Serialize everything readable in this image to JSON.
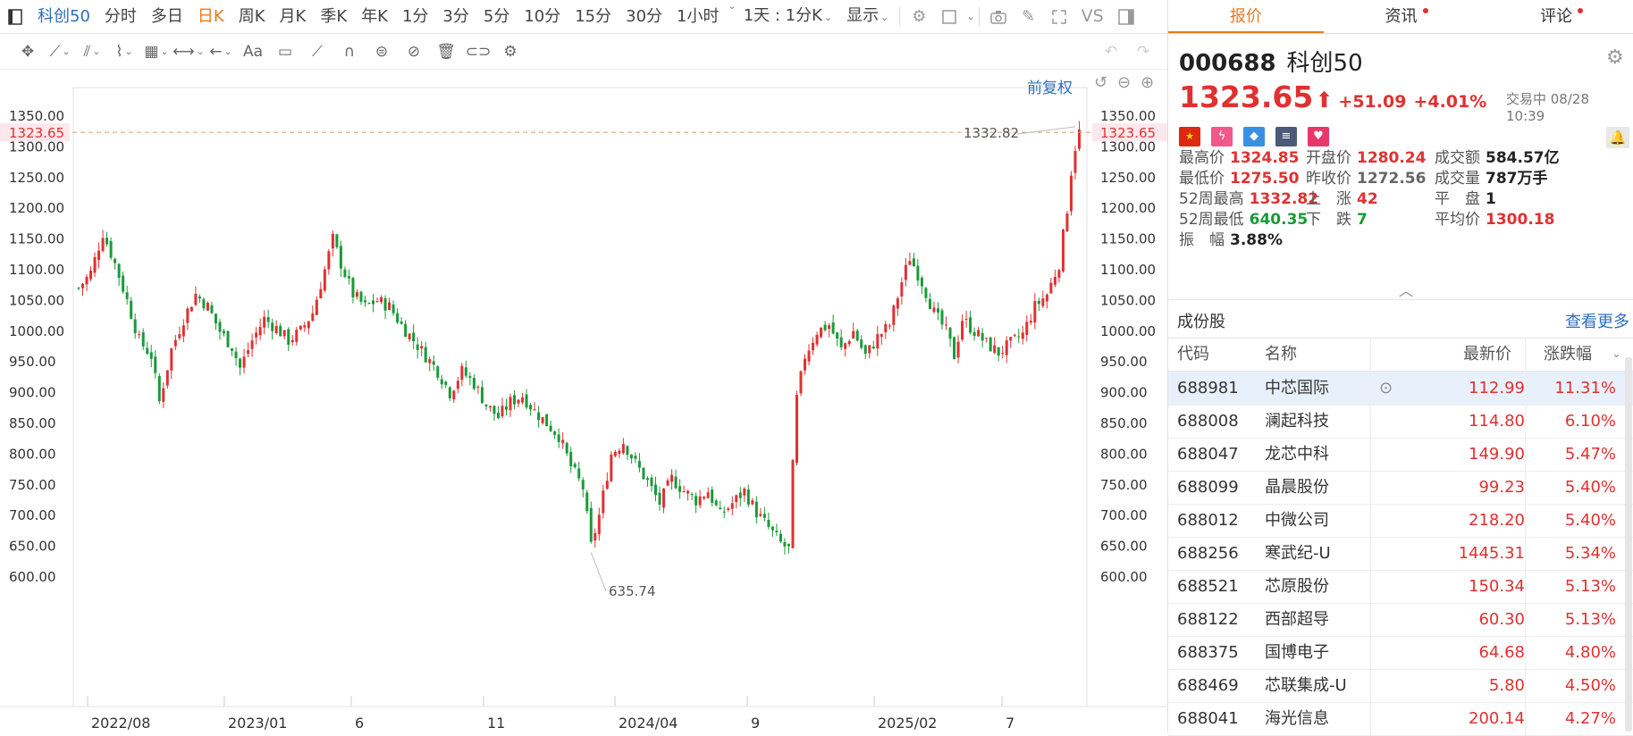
{
  "toolbar": {
    "title": "科创50",
    "periods": [
      "分时",
      "多日",
      "日K",
      "周K",
      "月K",
      "季K",
      "年K",
      "1分",
      "3分",
      "5分",
      "10分",
      "15分",
      "30分",
      "1小时"
    ],
    "selected": "日K",
    "combo": "1天 : 1分K",
    "display": "显示",
    "vs": "VS"
  },
  "chart_header": {
    "adjust_label": "前复权"
  },
  "chart_data": {
    "type": "candlestick",
    "y_ticks": [
      "1350.00",
      "1300.00",
      "1250.00",
      "1200.00",
      "1150.00",
      "1100.00",
      "1050.00",
      "1000.00",
      "950.00",
      "900.00",
      "850.00",
      "800.00",
      "750.00",
      "700.00",
      "650.00",
      "600.00"
    ],
    "x_ticks": [
      "2022/08",
      "2023/01",
      "6",
      "11",
      "2024/04",
      "9",
      "2025/02",
      "7"
    ],
    "ylim": [
      600,
      1350
    ],
    "current_price_label": "1323.65",
    "high_annotation": "1332.82",
    "low_annotation": "635.74",
    "close_path": [
      {
        "i": 0,
        "v": 1070
      },
      {
        "i": 3,
        "v": 1095
      },
      {
        "i": 6,
        "v": 1160
      },
      {
        "i": 9,
        "v": 1110
      },
      {
        "i": 12,
        "v": 1050
      },
      {
        "i": 15,
        "v": 985
      },
      {
        "i": 18,
        "v": 960
      },
      {
        "i": 20,
        "v": 885
      },
      {
        "i": 23,
        "v": 970
      },
      {
        "i": 26,
        "v": 1020
      },
      {
        "i": 29,
        "v": 1060
      },
      {
        "i": 32,
        "v": 1040
      },
      {
        "i": 35,
        "v": 1000
      },
      {
        "i": 38,
        "v": 975
      },
      {
        "i": 40,
        "v": 940
      },
      {
        "i": 43,
        "v": 985
      },
      {
        "i": 46,
        "v": 1020
      },
      {
        "i": 49,
        "v": 1005
      },
      {
        "i": 52,
        "v": 985
      },
      {
        "i": 55,
        "v": 1000
      },
      {
        "i": 58,
        "v": 1030
      },
      {
        "i": 61,
        "v": 1100
      },
      {
        "i": 63,
        "v": 1150
      },
      {
        "i": 65,
        "v": 1110
      },
      {
        "i": 68,
        "v": 1060
      },
      {
        "i": 71,
        "v": 1040
      },
      {
        "i": 74,
        "v": 1050
      },
      {
        "i": 77,
        "v": 1040
      },
      {
        "i": 80,
        "v": 1010
      },
      {
        "i": 83,
        "v": 985
      },
      {
        "i": 86,
        "v": 960
      },
      {
        "i": 89,
        "v": 935
      },
      {
        "i": 92,
        "v": 900
      },
      {
        "i": 95,
        "v": 935
      },
      {
        "i": 98,
        "v": 915
      },
      {
        "i": 101,
        "v": 880
      },
      {
        "i": 104,
        "v": 860
      },
      {
        "i": 107,
        "v": 885
      },
      {
        "i": 110,
        "v": 895
      },
      {
        "i": 113,
        "v": 870
      },
      {
        "i": 116,
        "v": 850
      },
      {
        "i": 119,
        "v": 830
      },
      {
        "i": 122,
        "v": 780
      },
      {
        "i": 125,
        "v": 745
      },
      {
        "i": 127,
        "v": 650
      },
      {
        "i": 129,
        "v": 700
      },
      {
        "i": 132,
        "v": 800
      },
      {
        "i": 135,
        "v": 820
      },
      {
        "i": 138,
        "v": 785
      },
      {
        "i": 141,
        "v": 755
      },
      {
        "i": 144,
        "v": 720
      },
      {
        "i": 147,
        "v": 760
      },
      {
        "i": 150,
        "v": 740
      },
      {
        "i": 153,
        "v": 725
      },
      {
        "i": 156,
        "v": 740
      },
      {
        "i": 159,
        "v": 700
      },
      {
        "i": 162,
        "v": 720
      },
      {
        "i": 165,
        "v": 740
      },
      {
        "i": 168,
        "v": 705
      },
      {
        "i": 171,
        "v": 680
      },
      {
        "i": 174,
        "v": 655
      },
      {
        "i": 176,
        "v": 645
      },
      {
        "i": 177,
        "v": 780
      },
      {
        "i": 178,
        "v": 890
      },
      {
        "i": 180,
        "v": 960
      },
      {
        "i": 183,
        "v": 1000
      },
      {
        "i": 186,
        "v": 1010
      },
      {
        "i": 189,
        "v": 970
      },
      {
        "i": 192,
        "v": 1000
      },
      {
        "i": 195,
        "v": 960
      },
      {
        "i": 198,
        "v": 990
      },
      {
        "i": 201,
        "v": 1010
      },
      {
        "i": 204,
        "v": 1080
      },
      {
        "i": 206,
        "v": 1120
      },
      {
        "i": 209,
        "v": 1080
      },
      {
        "i": 212,
        "v": 1030
      },
      {
        "i": 215,
        "v": 1000
      },
      {
        "i": 217,
        "v": 960
      },
      {
        "i": 219,
        "v": 1020
      },
      {
        "i": 222,
        "v": 1000
      },
      {
        "i": 225,
        "v": 980
      },
      {
        "i": 228,
        "v": 965
      },
      {
        "i": 231,
        "v": 980
      },
      {
        "i": 234,
        "v": 995
      },
      {
        "i": 237,
        "v": 1040
      },
      {
        "i": 240,
        "v": 1060
      },
      {
        "i": 243,
        "v": 1110
      },
      {
        "i": 245,
        "v": 1200
      },
      {
        "i": 246,
        "v": 1260
      },
      {
        "i": 247,
        "v": 1300
      },
      {
        "i": 248,
        "v": 1323.65
      }
    ]
  },
  "tabs": [
    {
      "label": "报价",
      "active": true,
      "dot": false
    },
    {
      "label": "资讯",
      "active": false,
      "dot": true
    },
    {
      "label": "评论",
      "active": false,
      "dot": true
    }
  ],
  "quote": {
    "code": "000688",
    "name": "科创50",
    "price": "1323.65",
    "arrow": "⬆",
    "change": "+51.09",
    "change_pct": "+4.01%",
    "status": "交易中 08/28 10:39"
  },
  "stats": [
    {
      "label": "最高价",
      "value": "1324.85",
      "color": "red"
    },
    {
      "label": "开盘价",
      "value": "1280.24",
      "color": "red"
    },
    {
      "label": "成交额",
      "value": "584.57亿",
      "color": "dark"
    },
    {
      "label": "最低价",
      "value": "1275.50",
      "color": "red"
    },
    {
      "label": "昨收价",
      "value": "1272.56",
      "color": "gray"
    },
    {
      "label": "成交量",
      "value": "787万手",
      "color": "dark"
    },
    {
      "label": "52周最高",
      "value": "1332.82",
      "color": "red"
    },
    {
      "label": "上　涨",
      "value": "42",
      "color": "red"
    },
    {
      "label": "平　盘",
      "value": "1",
      "color": "dark"
    },
    {
      "label": "52周最低",
      "value": "640.35",
      "color": "green"
    },
    {
      "label": "下　跌",
      "value": "7",
      "color": "green"
    },
    {
      "label": "平均价",
      "value": "1300.18",
      "color": "red"
    },
    {
      "label": "振　幅",
      "value": "3.88%",
      "color": "dark"
    }
  ],
  "constituents": {
    "title": "成份股",
    "more": "查看更多",
    "headers": [
      "代码",
      "名称",
      "最新价",
      "涨跌幅"
    ],
    "rows": [
      {
        "code": "688981",
        "name": "中芯国际",
        "price": "112.99",
        "pct": "11.31%"
      },
      {
        "code": "688008",
        "name": "澜起科技",
        "price": "114.80",
        "pct": "6.10%"
      },
      {
        "code": "688047",
        "name": "龙芯中科",
        "price": "149.90",
        "pct": "5.47%"
      },
      {
        "code": "688099",
        "name": "晶晨股份",
        "price": "99.23",
        "pct": "5.40%"
      },
      {
        "code": "688012",
        "name": "中微公司",
        "price": "218.20",
        "pct": "5.40%"
      },
      {
        "code": "688256",
        "name": "寒武纪-U",
        "price": "1445.31",
        "pct": "5.34%"
      },
      {
        "code": "688521",
        "name": "芯原股份",
        "price": "150.34",
        "pct": "5.13%"
      },
      {
        "code": "688122",
        "name": "西部超导",
        "price": "60.30",
        "pct": "5.13%"
      },
      {
        "code": "688375",
        "name": "国博电子",
        "price": "64.68",
        "pct": "4.80%"
      },
      {
        "code": "688469",
        "name": "芯联集成-U",
        "price": "5.80",
        "pct": "4.50%"
      },
      {
        "code": "688041",
        "name": "海光信息",
        "price": "200.14",
        "pct": "4.27%"
      }
    ]
  },
  "colors": {
    "up": "#e03131",
    "down": "#1a9a38",
    "accent": "#e87a1e",
    "link": "#2f6fbf"
  }
}
